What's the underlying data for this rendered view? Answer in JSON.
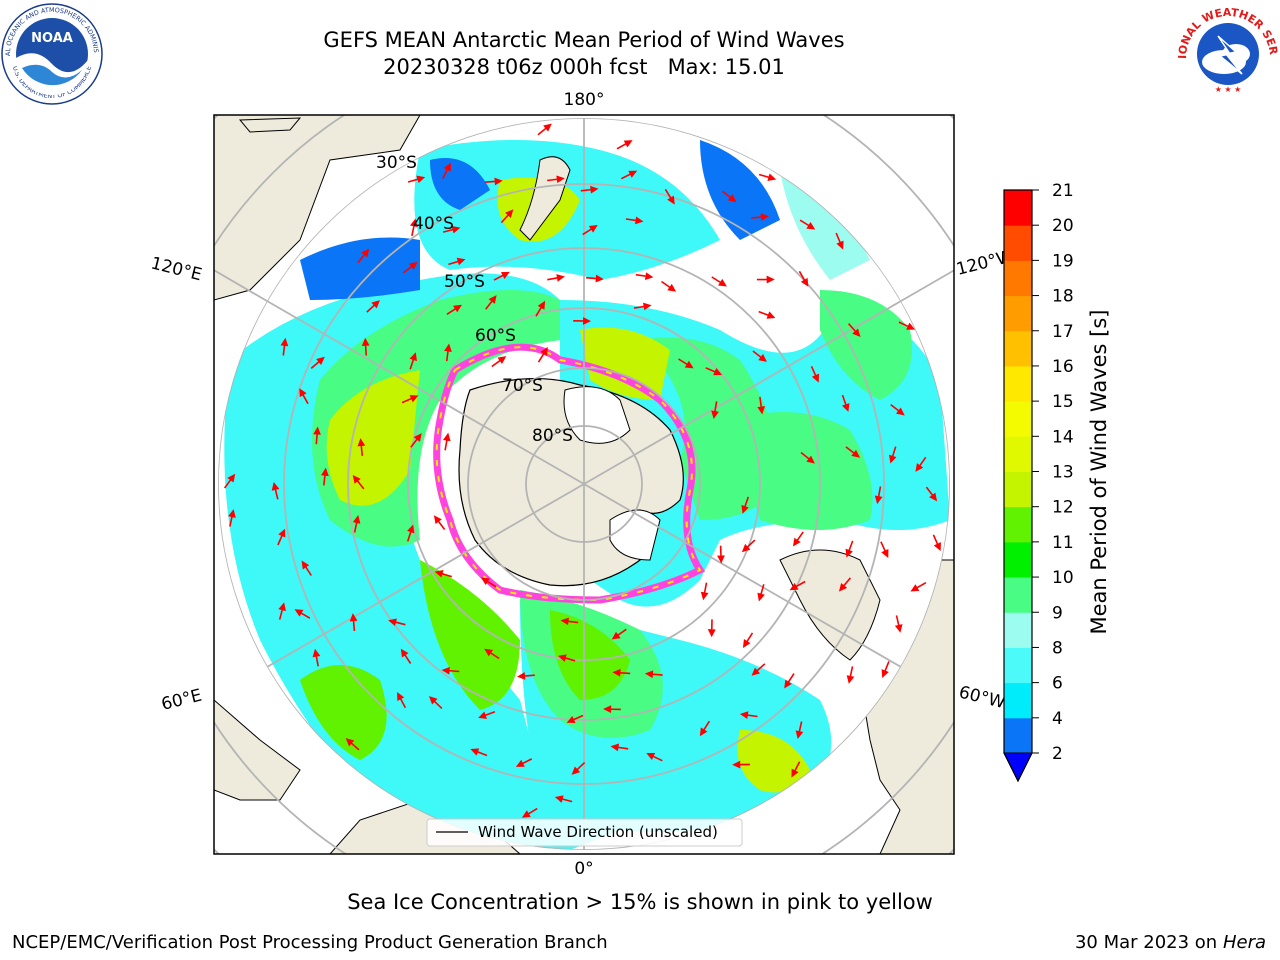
{
  "header": {
    "title_line1": "GEFS MEAN Antarctic Mean Period of Wind Waves",
    "title_line2": "20230328 t06z 000h fcst   Max: 15.01"
  },
  "logos": {
    "left": {
      "icon": "noaa-logo",
      "ring_text_top": "NATIONAL OCEANIC AND ATMOSPHERIC ADMINISTRATION",
      "ring_text_bottom": "U.S. DEPARTMENT OF COMMERCE",
      "center_text": "NOAA"
    },
    "right": {
      "icon": "nws-logo",
      "ring_text": "NATIONAL WEATHER SERVICE"
    }
  },
  "map": {
    "projection": "south-polar-stereographic",
    "longitude_labels": {
      "top": "180°",
      "bottom": "0°",
      "left_upper": "120°E",
      "left_lower": "60°E",
      "right_upper": "120°W",
      "right_lower": "60°W"
    },
    "latitude_labels": [
      "30°S",
      "40°S",
      "50°S",
      "60°S",
      "70°S",
      "80°S"
    ],
    "legend_label": "Wind Wave Direction (unscaled)",
    "colors": {
      "land": "#efebdc",
      "grid": "#b4b4b4",
      "arrow": "#ff0000",
      "ice": "#ff44dd",
      "coast": "#000000"
    }
  },
  "colorbar": {
    "label": "Mean Period of Wind Waves [s]",
    "ticks": [
      "2",
      "4",
      "6",
      "8",
      "9",
      "10",
      "11",
      "12",
      "13",
      "14",
      "15",
      "16",
      "17",
      "18",
      "19",
      "20",
      "21"
    ],
    "colors": [
      "#0a75f6",
      "#00ecfa",
      "#4dfafa",
      "#9cfcf0",
      "#48fc84",
      "#00f000",
      "#60f200",
      "#c4f400",
      "#e0f800",
      "#f4fa00",
      "#ffe800",
      "#ffc000",
      "#ff9c00",
      "#ff7800",
      "#ff4c00",
      "#ff0000"
    ],
    "extend_color": "#0000ff"
  },
  "footer": {
    "note": "Sea Ice Concentration > 15% is shown in pink to yellow",
    "credit": "NCEP/EMC/Verification Post Processing Product Generation Branch",
    "date": "30 Mar 2023 on",
    "host": "Hera"
  }
}
